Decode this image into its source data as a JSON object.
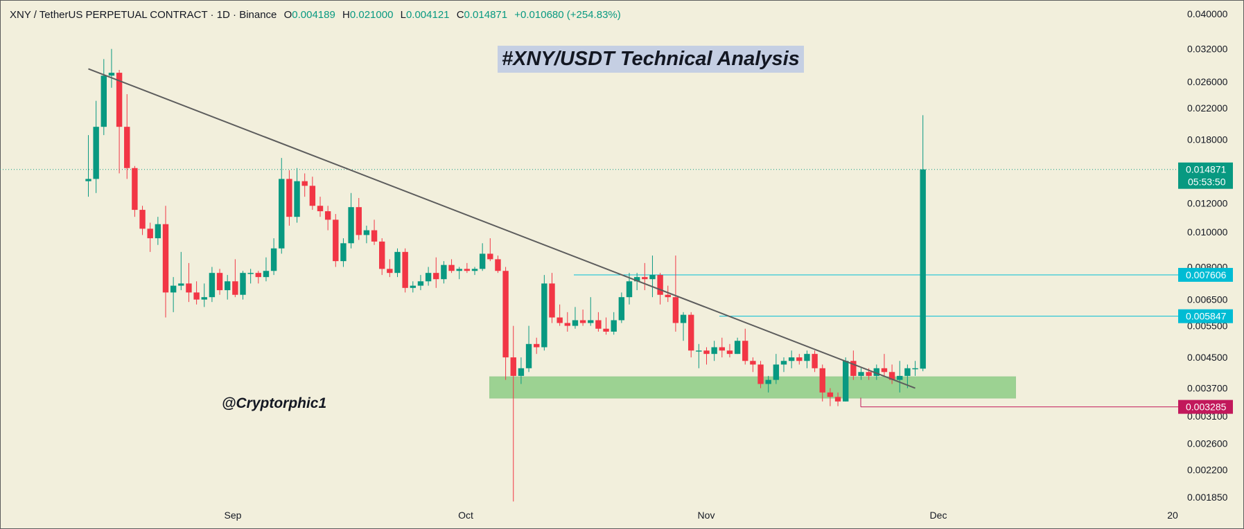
{
  "header": {
    "symbol": "XNY / TetherUS PERPETUAL CONTRACT · 1D · Binance",
    "o_label": "O",
    "o": "0.004189",
    "h_label": "H",
    "h": "0.021000",
    "l_label": "L",
    "l": "0.004121",
    "c_label": "C",
    "c": "0.014871",
    "change": "+0.010680 (+254.83%)"
  },
  "title": "#XNY/USDT Technical Analysis",
  "watermark": "@Cryptorphic1",
  "colors": {
    "up": "#089981",
    "down": "#f23645",
    "background": "#f2efdc",
    "trendline": "#5d5d5d",
    "zone": "#8dcc85",
    "level": "#00bcd4",
    "low_level": "#c2185b"
  },
  "chart_data": {
    "type": "candlestick",
    "scale": "log",
    "y_ticks": [
      "0.040000",
      "0.032000",
      "0.026000",
      "0.022000",
      "0.018000",
      "0.014871",
      "0.012000",
      "0.010000",
      "0.008000",
      "0.007606",
      "0.006500",
      "0.005847",
      "0.005500",
      "0.004500",
      "0.003700",
      "0.003285",
      "0.003100",
      "0.002600",
      "0.002200",
      "0.001850"
    ],
    "x_ticks": [
      "Sep",
      "Oct",
      "Nov",
      "Dec",
      "20"
    ],
    "price_label": {
      "value": "0.014871",
      "countdown": "05:53:50"
    },
    "levels": [
      {
        "value": 0.007606,
        "label": "0.007606"
      },
      {
        "value": 0.005847,
        "label": "0.005847"
      },
      {
        "value": 0.003285,
        "label": "0.003285"
      }
    ],
    "support_zone": [
      0.00348,
      0.00397
    ],
    "trendline": [
      {
        "date": "2025-08-20",
        "value": 0.0282
      },
      {
        "date": "2025-12-05",
        "value": 0.0037
      }
    ],
    "first_date": "2025-08-20",
    "candles": [
      {
        "o": 0.0138,
        "h": 0.0185,
        "l": 0.0125,
        "c": 0.014
      },
      {
        "o": 0.014,
        "h": 0.023,
        "l": 0.0128,
        "c": 0.0195
      },
      {
        "o": 0.0195,
        "h": 0.03,
        "l": 0.0185,
        "c": 0.027
      },
      {
        "o": 0.027,
        "h": 0.032,
        "l": 0.025,
        "c": 0.0275
      },
      {
        "o": 0.0275,
        "h": 0.028,
        "l": 0.0145,
        "c": 0.0195
      },
      {
        "o": 0.0195,
        "h": 0.024,
        "l": 0.014,
        "c": 0.015
      },
      {
        "o": 0.015,
        "h": 0.0152,
        "l": 0.011,
        "c": 0.0115
      },
      {
        "o": 0.0115,
        "h": 0.0118,
        "l": 0.0098,
        "c": 0.0102
      },
      {
        "o": 0.0102,
        "h": 0.0106,
        "l": 0.0088,
        "c": 0.0096
      },
      {
        "o": 0.0096,
        "h": 0.011,
        "l": 0.0092,
        "c": 0.0105
      },
      {
        "o": 0.0105,
        "h": 0.0118,
        "l": 0.0058,
        "c": 0.0068
      },
      {
        "o": 0.0068,
        "h": 0.0075,
        "l": 0.006,
        "c": 0.0071
      },
      {
        "o": 0.0071,
        "h": 0.0088,
        "l": 0.0069,
        "c": 0.0072
      },
      {
        "o": 0.0072,
        "h": 0.0082,
        "l": 0.0064,
        "c": 0.0068
      },
      {
        "o": 0.0068,
        "h": 0.0073,
        "l": 0.0063,
        "c": 0.0065
      },
      {
        "o": 0.0065,
        "h": 0.0072,
        "l": 0.0062,
        "c": 0.0066
      },
      {
        "o": 0.0066,
        "h": 0.008,
        "l": 0.0064,
        "c": 0.0077
      },
      {
        "o": 0.0077,
        "h": 0.0079,
        "l": 0.0067,
        "c": 0.0069
      },
      {
        "o": 0.0069,
        "h": 0.0076,
        "l": 0.0065,
        "c": 0.0073
      },
      {
        "o": 0.0073,
        "h": 0.0084,
        "l": 0.0066,
        "c": 0.0067
      },
      {
        "o": 0.0067,
        "h": 0.0078,
        "l": 0.0065,
        "c": 0.0077
      },
      {
        "o": 0.0077,
        "h": 0.0079,
        "l": 0.0072,
        "c": 0.0077
      },
      {
        "o": 0.0077,
        "h": 0.0078,
        "l": 0.0072,
        "c": 0.0075
      },
      {
        "o": 0.0075,
        "h": 0.0085,
        "l": 0.0073,
        "c": 0.0078
      },
      {
        "o": 0.0078,
        "h": 0.0096,
        "l": 0.0076,
        "c": 0.009
      },
      {
        "o": 0.009,
        "h": 0.016,
        "l": 0.0087,
        "c": 0.014
      },
      {
        "o": 0.014,
        "h": 0.0148,
        "l": 0.0104,
        "c": 0.011
      },
      {
        "o": 0.011,
        "h": 0.015,
        "l": 0.0106,
        "c": 0.0138
      },
      {
        "o": 0.0138,
        "h": 0.0145,
        "l": 0.0125,
        "c": 0.0134
      },
      {
        "o": 0.0134,
        "h": 0.0142,
        "l": 0.0115,
        "c": 0.0118
      },
      {
        "o": 0.0118,
        "h": 0.0125,
        "l": 0.011,
        "c": 0.0114
      },
      {
        "o": 0.0114,
        "h": 0.0118,
        "l": 0.0101,
        "c": 0.0108
      },
      {
        "o": 0.0108,
        "h": 0.0112,
        "l": 0.008,
        "c": 0.0083
      },
      {
        "o": 0.0083,
        "h": 0.0096,
        "l": 0.008,
        "c": 0.0093
      },
      {
        "o": 0.0093,
        "h": 0.0128,
        "l": 0.009,
        "c": 0.0117
      },
      {
        "o": 0.0117,
        "h": 0.0124,
        "l": 0.0095,
        "c": 0.0098
      },
      {
        "o": 0.0098,
        "h": 0.0104,
        "l": 0.0093,
        "c": 0.0101
      },
      {
        "o": 0.0101,
        "h": 0.0108,
        "l": 0.0092,
        "c": 0.0094
      },
      {
        "o": 0.0094,
        "h": 0.0096,
        "l": 0.0076,
        "c": 0.0079
      },
      {
        "o": 0.0079,
        "h": 0.0084,
        "l": 0.0075,
        "c": 0.0077
      },
      {
        "o": 0.0077,
        "h": 0.009,
        "l": 0.0075,
        "c": 0.0088
      },
      {
        "o": 0.0088,
        "h": 0.009,
        "l": 0.0068,
        "c": 0.007
      },
      {
        "o": 0.007,
        "h": 0.0073,
        "l": 0.0068,
        "c": 0.0071
      },
      {
        "o": 0.0071,
        "h": 0.0076,
        "l": 0.0069,
        "c": 0.0073
      },
      {
        "o": 0.0073,
        "h": 0.008,
        "l": 0.0071,
        "c": 0.0077
      },
      {
        "o": 0.0077,
        "h": 0.0085,
        "l": 0.007,
        "c": 0.0074
      },
      {
        "o": 0.0074,
        "h": 0.0083,
        "l": 0.0072,
        "c": 0.0081
      },
      {
        "o": 0.0081,
        "h": 0.0084,
        "l": 0.0077,
        "c": 0.0078
      },
      {
        "o": 0.0078,
        "h": 0.008,
        "l": 0.0074,
        "c": 0.0079
      },
      {
        "o": 0.0079,
        "h": 0.0082,
        "l": 0.0077,
        "c": 0.0078
      },
      {
        "o": 0.0078,
        "h": 0.008,
        "l": 0.0076,
        "c": 0.0079
      },
      {
        "o": 0.0079,
        "h": 0.0093,
        "l": 0.0078,
        "c": 0.0087
      },
      {
        "o": 0.0087,
        "h": 0.0096,
        "l": 0.0083,
        "c": 0.0084
      },
      {
        "o": 0.0084,
        "h": 0.0086,
        "l": 0.0077,
        "c": 0.0078
      },
      {
        "o": 0.0078,
        "h": 0.008,
        "l": 0.0039,
        "c": 0.0045
      },
      {
        "o": 0.0045,
        "h": 0.0055,
        "l": 0.0018,
        "c": 0.004
      },
      {
        "o": 0.004,
        "h": 0.0045,
        "l": 0.0038,
        "c": 0.0042
      },
      {
        "o": 0.0042,
        "h": 0.0055,
        "l": 0.0041,
        "c": 0.0049
      },
      {
        "o": 0.0049,
        "h": 0.0051,
        "l": 0.0046,
        "c": 0.0048
      },
      {
        "o": 0.0048,
        "h": 0.0076,
        "l": 0.0047,
        "c": 0.0072
      },
      {
        "o": 0.0072,
        "h": 0.0077,
        "l": 0.0056,
        "c": 0.0058
      },
      {
        "o": 0.0058,
        "h": 0.0063,
        "l": 0.0055,
        "c": 0.0056
      },
      {
        "o": 0.0056,
        "h": 0.006,
        "l": 0.0053,
        "c": 0.0055
      },
      {
        "o": 0.0055,
        "h": 0.0062,
        "l": 0.0054,
        "c": 0.0057
      },
      {
        "o": 0.0057,
        "h": 0.0061,
        "l": 0.0055,
        "c": 0.0056
      },
      {
        "o": 0.0056,
        "h": 0.0066,
        "l": 0.0055,
        "c": 0.0057
      },
      {
        "o": 0.0057,
        "h": 0.006,
        "l": 0.0053,
        "c": 0.0054
      },
      {
        "o": 0.0054,
        "h": 0.0058,
        "l": 0.0052,
        "c": 0.0053
      },
      {
        "o": 0.0053,
        "h": 0.006,
        "l": 0.0052,
        "c": 0.0057
      },
      {
        "o": 0.0057,
        "h": 0.0068,
        "l": 0.0056,
        "c": 0.0066
      },
      {
        "o": 0.0066,
        "h": 0.0077,
        "l": 0.0063,
        "c": 0.0073
      },
      {
        "o": 0.0073,
        "h": 0.0077,
        "l": 0.0069,
        "c": 0.0075
      },
      {
        "o": 0.0075,
        "h": 0.0082,
        "l": 0.0069,
        "c": 0.0074
      },
      {
        "o": 0.0074,
        "h": 0.0086,
        "l": 0.0066,
        "c": 0.0076
      },
      {
        "o": 0.0076,
        "h": 0.0077,
        "l": 0.0063,
        "c": 0.0067
      },
      {
        "o": 0.0067,
        "h": 0.0071,
        "l": 0.0064,
        "c": 0.0066
      },
      {
        "o": 0.0066,
        "h": 0.0086,
        "l": 0.0053,
        "c": 0.0056
      },
      {
        "o": 0.0056,
        "h": 0.006,
        "l": 0.005,
        "c": 0.0059
      },
      {
        "o": 0.0059,
        "h": 0.006,
        "l": 0.0045,
        "c": 0.0047
      },
      {
        "o": 0.0047,
        "h": 0.0049,
        "l": 0.0042,
        "c": 0.0047
      },
      {
        "o": 0.0047,
        "h": 0.0048,
        "l": 0.0043,
        "c": 0.0046
      },
      {
        "o": 0.0046,
        "h": 0.005,
        "l": 0.0044,
        "c": 0.0048
      },
      {
        "o": 0.0048,
        "h": 0.0051,
        "l": 0.0045,
        "c": 0.0047
      },
      {
        "o": 0.0047,
        "h": 0.0049,
        "l": 0.0045,
        "c": 0.0046
      },
      {
        "o": 0.0046,
        "h": 0.0051,
        "l": 0.0046,
        "c": 0.005
      },
      {
        "o": 0.005,
        "h": 0.0054,
        "l": 0.0043,
        "c": 0.0044
      },
      {
        "o": 0.0044,
        "h": 0.0045,
        "l": 0.0041,
        "c": 0.0043
      },
      {
        "o": 0.0043,
        "h": 0.0044,
        "l": 0.0037,
        "c": 0.0038
      },
      {
        "o": 0.0038,
        "h": 0.004,
        "l": 0.0036,
        "c": 0.0039
      },
      {
        "o": 0.0039,
        "h": 0.0046,
        "l": 0.0038,
        "c": 0.0043
      },
      {
        "o": 0.0043,
        "h": 0.0045,
        "l": 0.0041,
        "c": 0.0044
      },
      {
        "o": 0.0044,
        "h": 0.0047,
        "l": 0.0042,
        "c": 0.0045
      },
      {
        "o": 0.0045,
        "h": 0.0046,
        "l": 0.0043,
        "c": 0.0044
      },
      {
        "o": 0.0044,
        "h": 0.0047,
        "l": 0.0042,
        "c": 0.0046
      },
      {
        "o": 0.0046,
        "h": 0.0047,
        "l": 0.0041,
        "c": 0.0042
      },
      {
        "o": 0.0042,
        "h": 0.0043,
        "l": 0.0034,
        "c": 0.0036
      },
      {
        "o": 0.0036,
        "h": 0.0037,
        "l": 0.0033,
        "c": 0.0035
      },
      {
        "o": 0.0035,
        "h": 0.0036,
        "l": 0.0033,
        "c": 0.0034
      },
      {
        "o": 0.0034,
        "h": 0.0045,
        "l": 0.0034,
        "c": 0.0044
      },
      {
        "o": 0.0044,
        "h": 0.0047,
        "l": 0.0039,
        "c": 0.004
      },
      {
        "o": 0.004,
        "h": 0.0042,
        "l": 0.0039,
        "c": 0.0041
      },
      {
        "o": 0.0041,
        "h": 0.0042,
        "l": 0.0039,
        "c": 0.004
      },
      {
        "o": 0.004,
        "h": 0.0043,
        "l": 0.0039,
        "c": 0.0042
      },
      {
        "o": 0.0042,
        "h": 0.0046,
        "l": 0.004,
        "c": 0.0041
      },
      {
        "o": 0.0041,
        "h": 0.0043,
        "l": 0.0038,
        "c": 0.0039
      },
      {
        "o": 0.0039,
        "h": 0.0044,
        "l": 0.0036,
        "c": 0.004
      },
      {
        "o": 0.004,
        "h": 0.0043,
        "l": 0.0037,
        "c": 0.0042
      },
      {
        "o": 0.0042,
        "h": 0.0044,
        "l": 0.004,
        "c": 0.0042
      },
      {
        "o": 0.004189,
        "h": 0.021,
        "l": 0.004121,
        "c": 0.014871
      }
    ]
  }
}
